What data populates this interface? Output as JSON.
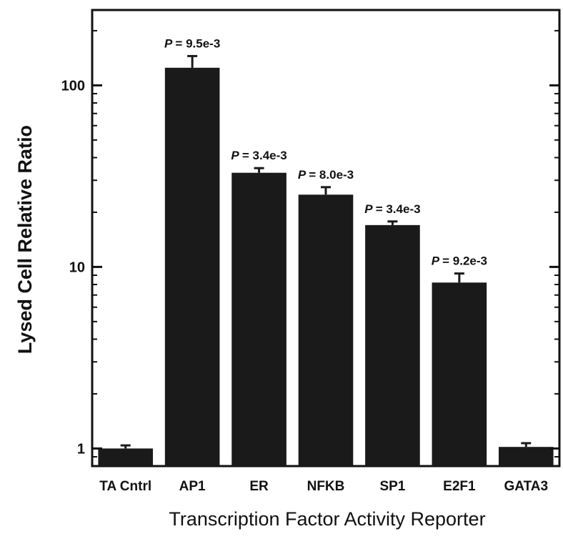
{
  "chart_data": {
    "type": "bar",
    "title": "",
    "xlabel": "Transcription Factor Activity Reporter",
    "ylabel": "Lysed Cell Relative Ratio",
    "yscale": "log",
    "ylim": [
      0.8,
      260
    ],
    "yticks": [
      {
        "value": 1,
        "label": "1"
      },
      {
        "value": 10,
        "label": "10"
      },
      {
        "value": 100,
        "label": "100"
      }
    ],
    "categories": [
      "TA Cntrl",
      "AP1",
      "ER",
      "NFKB",
      "SP1",
      "E2F1",
      "GATA3"
    ],
    "values": [
      1.0,
      125,
      33,
      25,
      17,
      8.2,
      1.02
    ],
    "error_upper": [
      1.04,
      145,
      35,
      27.5,
      17.8,
      9.2,
      1.07
    ],
    "annotations": [
      "",
      "= 9.5e-3",
      "= 3.4e-3",
      "= 8.0e-3",
      "= 3.4e-3",
      "= 9.2e-3",
      ""
    ],
    "annotation_prefix": "P",
    "bar_color": "#1a1a1a",
    "grid": false,
    "legend": "none"
  }
}
